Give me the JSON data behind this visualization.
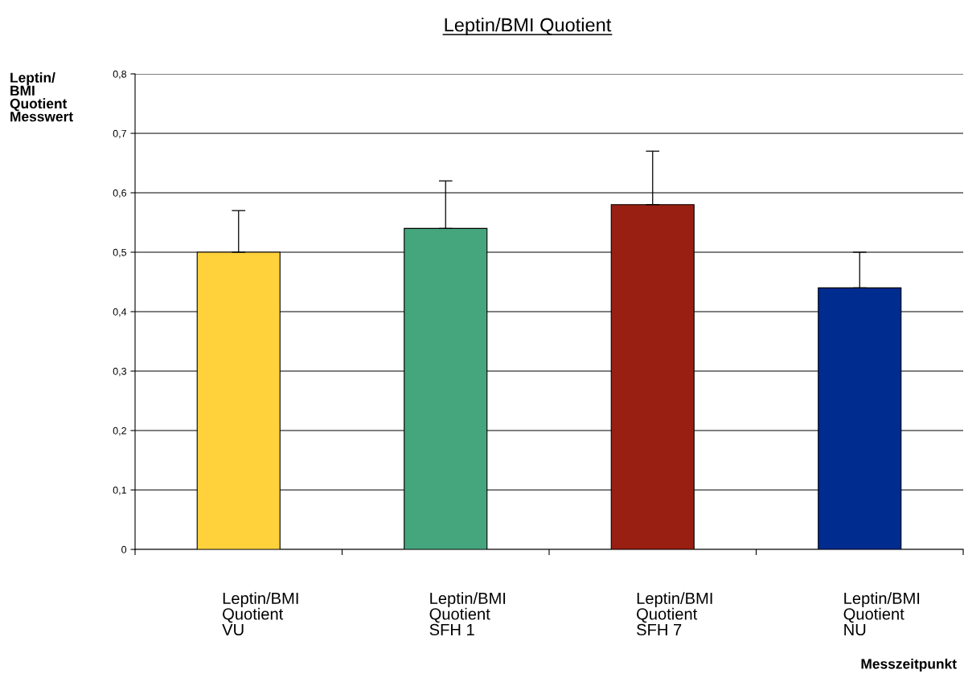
{
  "chart_data": {
    "type": "bar",
    "title": "Leptin/BMI Quotient",
    "ylabel": "Leptin/\nBMI\nQuotient\nMesswert",
    "xlabel": "Messzeitpunkt",
    "categories": [
      "Leptin/BMI\nQuotient\nVU",
      "Leptin/BMI\nQuotient\nSFH 1",
      "Leptin/BMI\nQuotient\nSFH 7",
      "Leptin/BMI\nQuotient\nNU"
    ],
    "values": [
      0.5,
      0.54,
      0.58,
      0.44
    ],
    "colors": [
      "#ffd23c",
      "#45a67d",
      "#981f12",
      "#002b8f"
    ],
    "errors": [
      [
        0.5,
        0.57
      ],
      [
        0.54,
        0.62
      ],
      [
        0.58,
        0.67
      ],
      [
        0.44,
        0.5
      ]
    ],
    "ylim": [
      0,
      0.8
    ],
    "yticks": [
      {
        "value": 0,
        "label": "0"
      },
      {
        "value": 0.1,
        "label": "0,1"
      },
      {
        "value": 0.2,
        "label": "0,2"
      },
      {
        "value": 0.3,
        "label": "0,3"
      },
      {
        "value": 0.4,
        "label": "0,4"
      },
      {
        "value": 0.5,
        "label": "0,5"
      },
      {
        "value": 0.6,
        "label": "0,6"
      },
      {
        "value": 0.7,
        "label": "0,7"
      },
      {
        "value": 0.8,
        "label": "0,8"
      }
    ],
    "grid": "y",
    "legend": false
  }
}
